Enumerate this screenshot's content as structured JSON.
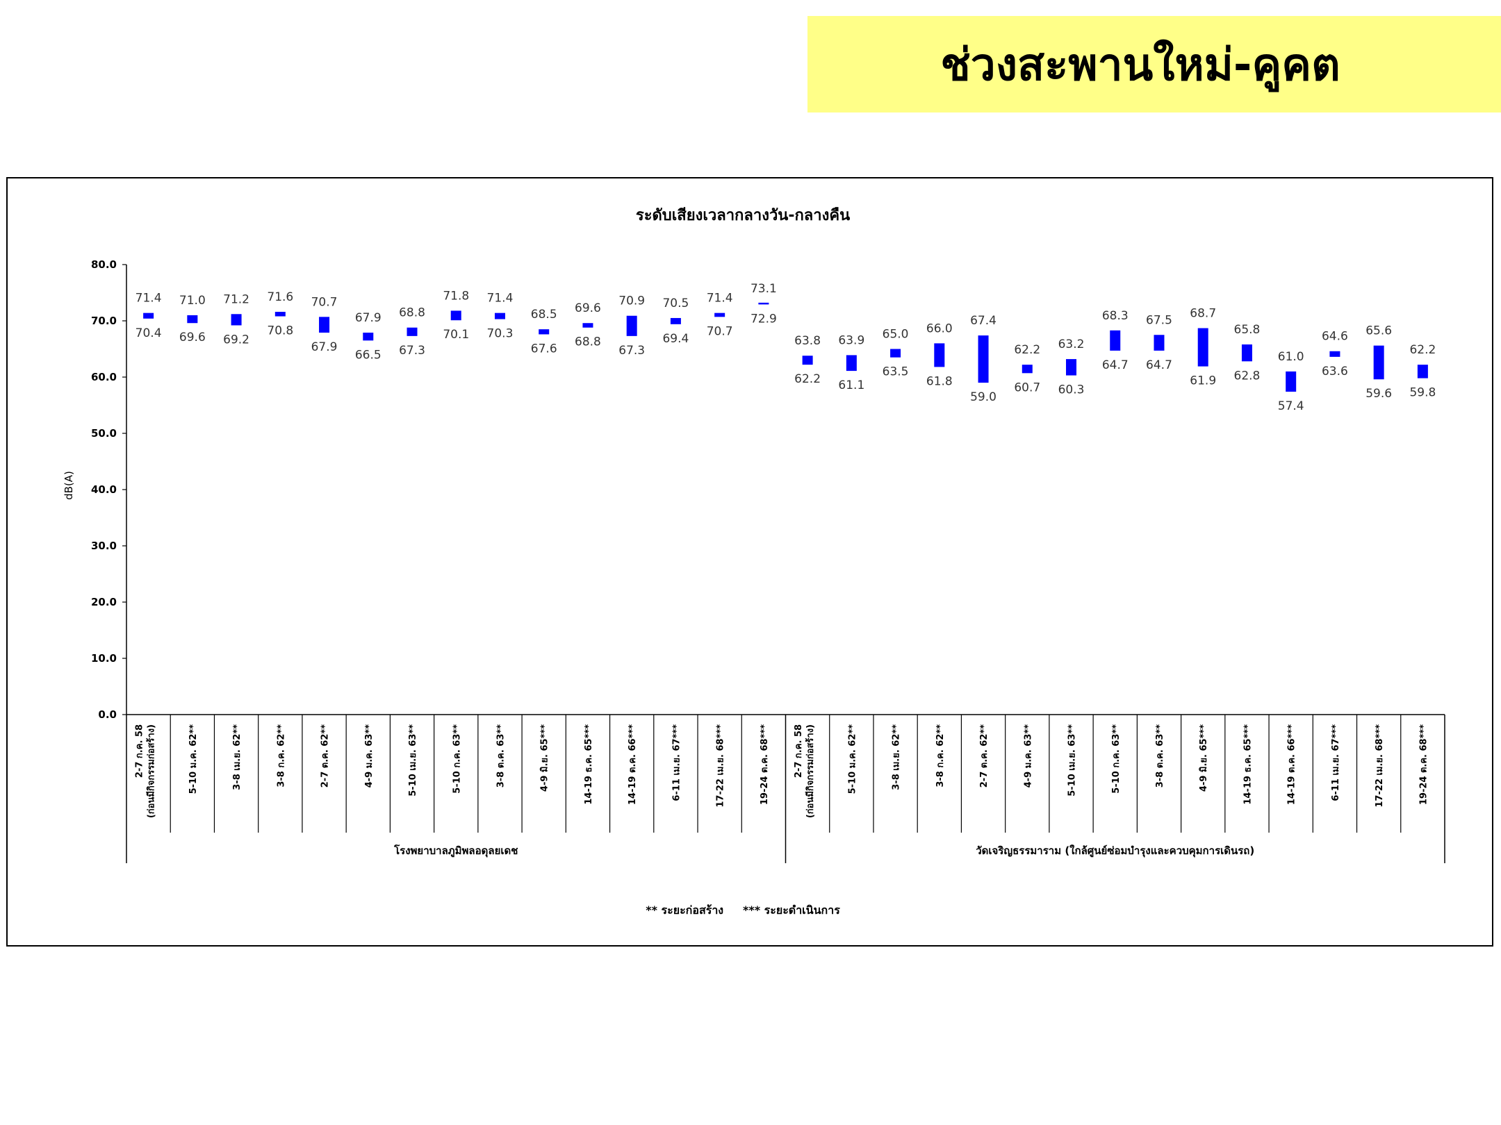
{
  "slide": {
    "title": "ช่วงสะพานใหม่-คูคต"
  },
  "chart_data": {
    "type": "bar",
    "subtype": "floating-range",
    "title": "ระดับเสียงเวลากลางวัน-กลางคืน",
    "ylabel": "dB(A)",
    "ylim": [
      0,
      80
    ],
    "yticks": [
      "0.0",
      "10.0",
      "20.0",
      "30.0",
      "40.0",
      "50.0",
      "60.0",
      "70.0",
      "80.0"
    ],
    "bar_color": "#0000ff",
    "groups": [
      {
        "name": "โรงพยาบาลภูมิพลอดุลยเดช",
        "categories": [
          {
            "line1": "2-7 ก.ค. 58",
            "line2": "(ก่อนมีกิจกรรมก่อสร้าง)"
          },
          {
            "line1": "5-10 ม.ค. 62**"
          },
          {
            "line1": "3-8 เม.ย. 62**"
          },
          {
            "line1": "3-8 ก.ค. 62**"
          },
          {
            "line1": "2-7 ต.ค. 62**"
          },
          {
            "line1": "4-9 ม.ค. 63**"
          },
          {
            "line1": "5-10 เม.ย. 63**"
          },
          {
            "line1": "5-10 ก.ค. 63**"
          },
          {
            "line1": "3-8 ต.ค. 63**"
          },
          {
            "line1": "4-9 มิ.ย. 65***"
          },
          {
            "line1": "14-19 ธ.ค. 65***"
          },
          {
            "line1": "14-19 ต.ค. 66***"
          },
          {
            "line1": "6-11 เม.ย. 67***"
          },
          {
            "line1": "17-22 เม.ย. 68***"
          },
          {
            "line1": "19-24 ต.ค. 68***"
          }
        ],
        "high": [
          "71.4",
          "71.0",
          "71.2",
          "71.6",
          "70.7",
          "67.9",
          "68.8",
          "71.8",
          "71.4",
          "68.5",
          "69.6",
          "70.9",
          "70.5",
          "71.4",
          "73.1"
        ],
        "low": [
          "70.4",
          "69.6",
          "69.2",
          "70.8",
          "67.9",
          "66.5",
          "67.3",
          "70.1",
          "70.3",
          "67.6",
          "68.8",
          "67.3",
          "69.4",
          "70.7",
          "72.9"
        ]
      },
      {
        "name": "วัดเจริญธรรมาราม (ใกล้ศูนย์ซ่อมบำรุงและควบคุมการเดินรถ)",
        "categories": [
          {
            "line1": "2-7 ก.ค. 58",
            "line2": "(ก่อนมีกิจกรรมก่อสร้าง)"
          },
          {
            "line1": "5-10 ม.ค. 62**"
          },
          {
            "line1": "3-8 เม.ย. 62**"
          },
          {
            "line1": "3-8 ก.ค. 62**"
          },
          {
            "line1": "2-7 ต.ค. 62**"
          },
          {
            "line1": "4-9 ม.ค. 63**"
          },
          {
            "line1": "5-10 เม.ย. 63**"
          },
          {
            "line1": "5-10 ก.ค. 63**"
          },
          {
            "line1": "3-8 ต.ค. 63**"
          },
          {
            "line1": "4-9 มิ.ย. 65***"
          },
          {
            "line1": "14-19 ธ.ค. 65***"
          },
          {
            "line1": "14-19 ต.ค. 66***"
          },
          {
            "line1": "6-11 เม.ย. 67***"
          },
          {
            "line1": "17-22 เม.ย. 68***"
          },
          {
            "line1": "19-24 ต.ค. 68***"
          }
        ],
        "high": [
          "63.8",
          "63.9",
          "65.0",
          "66.0",
          "67.4",
          "62.2",
          "63.2",
          "68.3",
          "67.5",
          "68.7",
          "65.8",
          "61.0",
          "64.6",
          "65.6",
          "62.2"
        ],
        "low": [
          "62.2",
          "61.1",
          "63.5",
          "61.8",
          "59.0",
          "60.7",
          "60.3",
          "64.7",
          "64.7",
          "61.9",
          "62.8",
          "57.4",
          "63.6",
          "59.6",
          "59.8"
        ]
      }
    ],
    "footnote": "** ระยะก่อสร้าง     *** ระยะดำเนินการ",
    "legend": "none",
    "grid": false
  }
}
